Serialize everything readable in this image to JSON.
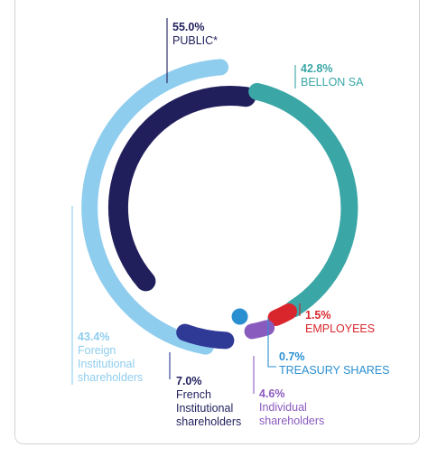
{
  "chart_data": {
    "type": "donut",
    "title": "",
    "legend": "none",
    "outer_ring": [
      {
        "pct": "55.0%",
        "value": 55.0,
        "name": "PUBLIC*",
        "color": "#201f5c"
      },
      {
        "pct": "42.8%",
        "value": 42.8,
        "name": "BELLON SA",
        "color": "#3aa6a6"
      },
      {
        "pct": "1.5%",
        "value": 1.5,
        "name": "EMPLOYEES",
        "color": "#d8262c"
      },
      {
        "pct": "0.7%",
        "value": 0.7,
        "name": "TREASURY SHARES",
        "color": "#2a8fd0"
      }
    ],
    "public_breakdown": [
      {
        "pct": "43.4%",
        "value": 43.4,
        "name": "Foreign Institutional shareholders",
        "lines": [
          "Foreign",
          "Institutional",
          "shareholders"
        ],
        "color": "#8fcdee"
      },
      {
        "pct": "7.0%",
        "value": 7.0,
        "name": "French Institutional shareholders",
        "lines": [
          "French",
          "Institutional",
          "shareholders"
        ],
        "color": "#2f3996"
      },
      {
        "pct": "4.6%",
        "value": 4.6,
        "name": "Individual shareholders",
        "lines": [
          "Individual",
          "shareholders"
        ],
        "color": "#8a5bbf"
      }
    ]
  }
}
